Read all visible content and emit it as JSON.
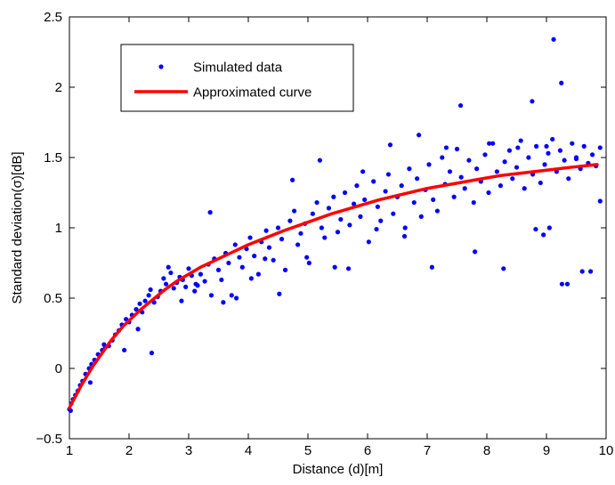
{
  "chart_data": {
    "type": "scatter",
    "title": "",
    "xlabel": "Distance (d)[m]",
    "ylabel": "Standard deviation(σ)[dB]",
    "xlim": [
      1,
      10
    ],
    "ylim": [
      -0.5,
      2.5
    ],
    "xticks": [
      1,
      2,
      3,
      4,
      5,
      6,
      7,
      8,
      9,
      10
    ],
    "yticks": [
      -0.5,
      0,
      0.5,
      1,
      1.5,
      2,
      2.5
    ],
    "ytick_labels": [
      "−0.5",
      "0",
      "0.5",
      "1",
      "1.5",
      "2",
      "2.5"
    ],
    "grid": false,
    "legend_position": "top-left",
    "series": [
      {
        "name": "Simulated data",
        "style": "points",
        "color": "#0000ff",
        "x": [
          1.0,
          1.03,
          1.06,
          1.1,
          1.14,
          1.18,
          1.22,
          1.27,
          1.33,
          1.37,
          1.42,
          1.48,
          1.55,
          1.6,
          1.66,
          1.72,
          1.77,
          1.83,
          1.88,
          1.95,
          2.0,
          2.05,
          2.12,
          2.18,
          2.22,
          2.27,
          2.33,
          2.36,
          2.42,
          2.48,
          2.53,
          2.58,
          2.62,
          2.7,
          2.75,
          2.8,
          2.85,
          2.9,
          2.95,
          3.0,
          3.05,
          3.1,
          3.15,
          3.2,
          3.27,
          3.33,
          3.38,
          3.43,
          3.5,
          3.55,
          3.62,
          3.67,
          3.72,
          3.78,
          3.85,
          3.9,
          3.97,
          4.03,
          4.1,
          4.17,
          4.22,
          4.3,
          4.35,
          4.42,
          4.5,
          4.56,
          4.62,
          4.7,
          4.77,
          4.83,
          4.88,
          4.95,
          5.02,
          5.08,
          5.15,
          5.23,
          5.28,
          5.35,
          5.43,
          5.5,
          5.55,
          5.62,
          5.7,
          5.77,
          5.82,
          5.88,
          5.95,
          6.02,
          6.1,
          6.17,
          6.22,
          6.3,
          6.35,
          6.43,
          6.5,
          6.57,
          6.63,
          6.7,
          6.78,
          6.83,
          6.9,
          6.97,
          7.03,
          7.1,
          7.17,
          7.25,
          7.3,
          7.38,
          7.45,
          7.5,
          7.57,
          7.63,
          7.7,
          7.78,
          7.83,
          7.9,
          7.97,
          8.03,
          8.1,
          8.17,
          8.23,
          8.3,
          8.38,
          8.43,
          8.5,
          8.57,
          8.63,
          8.7,
          8.77,
          8.83,
          8.9,
          8.97,
          9.03,
          9.1,
          9.17,
          9.23,
          9.3,
          9.37,
          9.43,
          9.5,
          9.57,
          9.63,
          9.7,
          9.77,
          9.83,
          9.9,
          1.02,
          1.35,
          1.58,
          1.92,
          2.15,
          2.38,
          2.66,
          2.88,
          3.12,
          3.36,
          3.58,
          3.8,
          4.05,
          4.28,
          4.52,
          4.74,
          4.98,
          5.2,
          5.45,
          5.68,
          5.92,
          6.15,
          6.38,
          6.62,
          6.86,
          7.08,
          7.32,
          7.56,
          7.8,
          8.04,
          8.28,
          8.52,
          8.76,
          9.0,
          9.26,
          9.5,
          9.74,
          9.9
        ],
        "y": [
          -0.29,
          -0.25,
          -0.22,
          -0.19,
          -0.16,
          -0.12,
          -0.09,
          -0.04,
          0.0,
          0.03,
          0.06,
          0.1,
          0.13,
          0.15,
          0.16,
          0.2,
          0.24,
          0.27,
          0.31,
          0.35,
          0.33,
          0.38,
          0.42,
          0.46,
          0.4,
          0.48,
          0.52,
          0.56,
          0.47,
          0.51,
          0.55,
          0.64,
          0.6,
          0.68,
          0.57,
          0.61,
          0.65,
          0.63,
          0.58,
          0.71,
          0.66,
          0.55,
          0.59,
          0.67,
          0.62,
          0.74,
          0.52,
          0.78,
          0.7,
          0.63,
          0.82,
          0.75,
          0.52,
          0.88,
          0.79,
          0.72,
          0.85,
          0.93,
          0.8,
          0.67,
          0.9,
          0.98,
          0.86,
          0.77,
          1.0,
          0.92,
          0.7,
          1.05,
          1.12,
          0.88,
          0.96,
          1.03,
          0.75,
          1.1,
          1.18,
          1.0,
          0.93,
          1.14,
          1.22,
          0.97,
          1.06,
          1.25,
          1.02,
          1.17,
          1.3,
          1.08,
          1.2,
          0.9,
          1.33,
          1.15,
          1.05,
          1.26,
          1.38,
          1.1,
          1.22,
          1.3,
          1.0,
          1.42,
          1.18,
          1.35,
          1.08,
          1.27,
          1.45,
          1.2,
          1.12,
          1.5,
          1.31,
          1.4,
          1.22,
          1.56,
          1.36,
          1.28,
          1.48,
          1.18,
          1.42,
          1.33,
          1.52,
          1.25,
          1.6,
          1.4,
          1.3,
          1.47,
          1.55,
          1.35,
          1.43,
          1.62,
          1.28,
          1.5,
          1.38,
          1.58,
          1.32,
          1.45,
          1.53,
          1.63,
          1.4,
          1.55,
          1.48,
          1.35,
          1.6,
          1.5,
          1.42,
          1.58,
          1.46,
          1.52,
          1.44,
          1.57,
          -0.3,
          -0.1,
          0.17,
          0.13,
          0.28,
          0.11,
          0.72,
          0.48,
          0.6,
          1.11,
          0.47,
          0.5,
          0.64,
          0.78,
          0.53,
          1.34,
          0.79,
          1.48,
          0.72,
          0.71,
          1.4,
          0.99,
          1.59,
          0.94,
          1.66,
          0.72,
          1.57,
          1.87,
          0.83,
          1.6,
          0.71,
          1.57,
          1.9,
          1.58,
          0.6,
          1.49,
          0.69,
          1.19
        ],
        "extra_points": {
          "x": [
            9.12,
            9.25,
            9.35,
            9.6,
            8.95,
            9.05,
            8.82
          ],
          "y": [
            2.34,
            2.03,
            0.6,
            0.69,
            0.95,
            1.0,
            0.99
          ]
        }
      },
      {
        "name": "Approximated curve",
        "style": "line",
        "color": "#ff0000",
        "x": [
          1.0,
          1.1,
          1.2,
          1.3,
          1.4,
          1.5,
          1.6,
          1.7,
          1.8,
          1.9,
          2.0,
          2.2,
          2.4,
          2.6,
          2.8,
          3.0,
          3.2,
          3.4,
          3.6,
          3.8,
          4.0,
          4.3,
          4.6,
          5.0,
          5.4,
          5.8,
          6.2,
          6.6,
          7.0,
          7.4,
          7.8,
          8.2,
          8.6,
          9.0,
          9.4,
          9.85
        ],
        "y": [
          -0.28,
          -0.2,
          -0.12,
          -0.05,
          0.02,
          0.08,
          0.14,
          0.2,
          0.25,
          0.3,
          0.34,
          0.42,
          0.49,
          0.56,
          0.62,
          0.67,
          0.72,
          0.76,
          0.8,
          0.84,
          0.88,
          0.93,
          0.98,
          1.04,
          1.1,
          1.15,
          1.2,
          1.24,
          1.28,
          1.31,
          1.34,
          1.37,
          1.39,
          1.41,
          1.43,
          1.45
        ]
      }
    ]
  }
}
